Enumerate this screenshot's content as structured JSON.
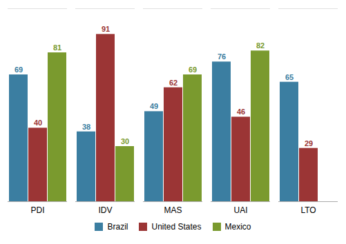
{
  "chart_data": {
    "type": "bar",
    "categories": [
      "PDI",
      "IDV",
      "MAS",
      "UAI",
      "LTO"
    ],
    "series": [
      {
        "name": "Brazil",
        "color": "#3b7ea1",
        "values": [
          69,
          38,
          49,
          76,
          65
        ]
      },
      {
        "name": "United States",
        "color": "#9b3535",
        "values": [
          40,
          91,
          62,
          46,
          29
        ]
      },
      {
        "name": "Mexico",
        "color": "#7a9a2e",
        "values": [
          81,
          30,
          69,
          82,
          null
        ]
      }
    ],
    "ylim": [
      0,
      105
    ],
    "data_labels": true,
    "tick_labels": "x",
    "legend": "bottom"
  }
}
